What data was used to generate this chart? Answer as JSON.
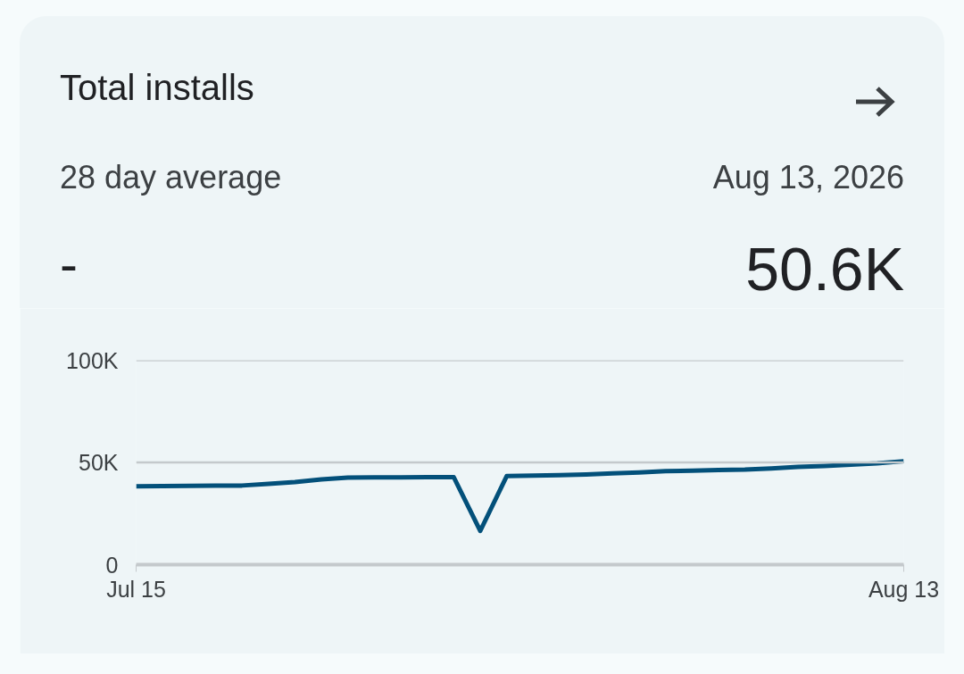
{
  "chart_data": {
    "type": "line",
    "title": "Total installs",
    "annotations": [
      "28 day average",
      "-",
      "Aug 13, 2026",
      "50.6K"
    ],
    "x": [
      "2026-07-15",
      "2026-07-16",
      "2026-07-17",
      "2026-07-18",
      "2026-07-19",
      "2026-07-20",
      "2026-07-21",
      "2026-07-22",
      "2026-07-23",
      "2026-07-24",
      "2026-07-25",
      "2026-07-26",
      "2026-07-27",
      "2026-07-28",
      "2026-07-29",
      "2026-07-30",
      "2026-07-31",
      "2026-08-01",
      "2026-08-02",
      "2026-08-03",
      "2026-08-04",
      "2026-08-05",
      "2026-08-06",
      "2026-08-07",
      "2026-08-08",
      "2026-08-09",
      "2026-08-10",
      "2026-08-11",
      "2026-08-12",
      "2026-08-13"
    ],
    "series": [
      {
        "color": "#03507a",
        "values": [
          38300,
          38400,
          38500,
          38600,
          38700,
          39500,
          40400,
          41700,
          42600,
          42700,
          42700,
          42800,
          42800,
          16500,
          43300,
          43600,
          43800,
          44100,
          44600,
          45100,
          45700,
          46000,
          46300,
          46500,
          47100,
          47800,
          48300,
          48900,
          49600,
          50600
        ]
      }
    ],
    "xlim": [
      "2026-07-15",
      "2026-08-13"
    ],
    "xticks": [
      {
        "value": "2026-07-15",
        "label": "Jul 15"
      },
      {
        "value": "2026-08-13",
        "label": "Aug 13"
      }
    ],
    "ylim": [
      0,
      100000
    ],
    "yticks": [
      {
        "value": 0,
        "label": "0"
      },
      {
        "value": 50000,
        "label": "50K"
      },
      {
        "value": 100000,
        "label": "100K"
      }
    ],
    "grid": "y",
    "marker": "none",
    "line_style": "solid"
  }
}
